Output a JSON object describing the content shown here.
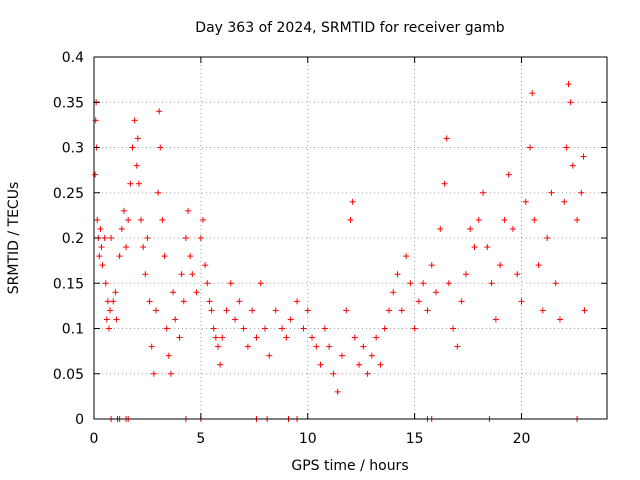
{
  "chart_data": {
    "type": "scatter",
    "title": "Day 363 of 2024, SRMTID for receiver gamb",
    "xlabel": "GPS time / hours",
    "ylabel": "SRMTID / TECUs",
    "xlim": [
      0,
      24
    ],
    "ylim": [
      0,
      0.4
    ],
    "x_ticks": [
      0,
      5,
      10,
      15,
      20
    ],
    "x_tick_labels": [
      "0",
      "5",
      "10",
      "15",
      "20"
    ],
    "y_ticks": [
      0,
      0.05,
      0.1,
      0.15,
      0.2,
      0.25,
      0.3,
      0.35,
      0.4
    ],
    "y_tick_labels": [
      "0",
      "0.05",
      "0.1",
      "0.15",
      "0.2",
      "0.25",
      "0.3",
      "0.35",
      "0.4"
    ],
    "grid": true,
    "marker": "+",
    "color": "#ff0000",
    "series": [
      {
        "name": "SRMTID",
        "points": [
          [
            0.05,
            0.27
          ],
          [
            0.08,
            0.33
          ],
          [
            0.1,
            0.35
          ],
          [
            0.12,
            0.3
          ],
          [
            0.15,
            0.22
          ],
          [
            0.2,
            0.2
          ],
          [
            0.25,
            0.18
          ],
          [
            0.3,
            0.21
          ],
          [
            0.35,
            0.19
          ],
          [
            0.4,
            0.17
          ],
          [
            0.5,
            0.2
          ],
          [
            0.55,
            0.15
          ],
          [
            0.6,
            0.11
          ],
          [
            0.65,
            0.13
          ],
          [
            0.7,
            0.1
          ],
          [
            0.75,
            0.12
          ],
          [
            0.8,
            0.2
          ],
          [
            0.9,
            0.13
          ],
          [
            1.0,
            0.14
          ],
          [
            1.05,
            0.11
          ],
          [
            1.2,
            0.18
          ],
          [
            1.3,
            0.21
          ],
          [
            1.4,
            0.23
          ],
          [
            1.5,
            0.19
          ],
          [
            1.6,
            0.22
          ],
          [
            1.7,
            0.26
          ],
          [
            1.8,
            0.3
          ],
          [
            1.9,
            0.33
          ],
          [
            2.0,
            0.28
          ],
          [
            2.05,
            0.31
          ],
          [
            2.1,
            0.26
          ],
          [
            2.2,
            0.22
          ],
          [
            2.3,
            0.19
          ],
          [
            2.4,
            0.16
          ],
          [
            2.5,
            0.2
          ],
          [
            2.6,
            0.13
          ],
          [
            2.7,
            0.08
          ],
          [
            2.8,
            0.05
          ],
          [
            2.9,
            0.12
          ],
          [
            3.0,
            0.25
          ],
          [
            3.05,
            0.34
          ],
          [
            3.1,
            0.3
          ],
          [
            3.2,
            0.22
          ],
          [
            3.3,
            0.18
          ],
          [
            3.4,
            0.1
          ],
          [
            3.5,
            0.07
          ],
          [
            3.6,
            0.05
          ],
          [
            3.7,
            0.14
          ],
          [
            3.8,
            0.11
          ],
          [
            4.0,
            0.09
          ],
          [
            4.1,
            0.16
          ],
          [
            4.2,
            0.13
          ],
          [
            4.3,
            0.2
          ],
          [
            4.4,
            0.23
          ],
          [
            4.5,
            0.18
          ],
          [
            4.6,
            0.16
          ],
          [
            4.8,
            0.14
          ],
          [
            5.0,
            0.2
          ],
          [
            5.1,
            0.22
          ],
          [
            5.2,
            0.17
          ],
          [
            5.3,
            0.15
          ],
          [
            5.4,
            0.13
          ],
          [
            5.5,
            0.12
          ],
          [
            5.6,
            0.1
          ],
          [
            5.7,
            0.09
          ],
          [
            5.8,
            0.08
          ],
          [
            5.9,
            0.06
          ],
          [
            6.0,
            0.09
          ],
          [
            6.2,
            0.12
          ],
          [
            6.4,
            0.15
          ],
          [
            6.6,
            0.11
          ],
          [
            6.8,
            0.13
          ],
          [
            7.0,
            0.1
          ],
          [
            7.2,
            0.08
          ],
          [
            7.4,
            0.12
          ],
          [
            7.6,
            0.09
          ],
          [
            7.8,
            0.15
          ],
          [
            8.0,
            0.1
          ],
          [
            8.2,
            0.07
          ],
          [
            8.5,
            0.12
          ],
          [
            8.8,
            0.1
          ],
          [
            9.0,
            0.09
          ],
          [
            9.2,
            0.11
          ],
          [
            9.5,
            0.13
          ],
          [
            9.8,
            0.1
          ],
          [
            10.0,
            0.12
          ],
          [
            10.2,
            0.09
          ],
          [
            10.4,
            0.08
          ],
          [
            10.6,
            0.06
          ],
          [
            10.8,
            0.1
          ],
          [
            11.0,
            0.08
          ],
          [
            11.2,
            0.05
          ],
          [
            11.4,
            0.03
          ],
          [
            11.6,
            0.07
          ],
          [
            11.8,
            0.12
          ],
          [
            12.0,
            0.22
          ],
          [
            12.1,
            0.24
          ],
          [
            12.2,
            0.09
          ],
          [
            12.4,
            0.06
          ],
          [
            12.6,
            0.08
          ],
          [
            12.8,
            0.05
          ],
          [
            13.0,
            0.07
          ],
          [
            13.2,
            0.09
          ],
          [
            13.4,
            0.06
          ],
          [
            13.6,
            0.1
          ],
          [
            13.8,
            0.12
          ],
          [
            14.0,
            0.14
          ],
          [
            14.2,
            0.16
          ],
          [
            14.4,
            0.12
          ],
          [
            14.6,
            0.18
          ],
          [
            14.8,
            0.15
          ],
          [
            15.0,
            0.1
          ],
          [
            15.2,
            0.13
          ],
          [
            15.4,
            0.15
          ],
          [
            15.6,
            0.12
          ],
          [
            15.8,
            0.17
          ],
          [
            16.0,
            0.14
          ],
          [
            16.2,
            0.21
          ],
          [
            16.4,
            0.26
          ],
          [
            16.5,
            0.31
          ],
          [
            16.6,
            0.15
          ],
          [
            16.8,
            0.1
          ],
          [
            17.0,
            0.08
          ],
          [
            17.2,
            0.13
          ],
          [
            17.4,
            0.16
          ],
          [
            17.6,
            0.21
          ],
          [
            17.8,
            0.19
          ],
          [
            18.0,
            0.22
          ],
          [
            18.2,
            0.25
          ],
          [
            18.4,
            0.19
          ],
          [
            18.6,
            0.15
          ],
          [
            18.8,
            0.11
          ],
          [
            19.0,
            0.17
          ],
          [
            19.2,
            0.22
          ],
          [
            19.4,
            0.27
          ],
          [
            19.6,
            0.21
          ],
          [
            19.8,
            0.16
          ],
          [
            20.0,
            0.13
          ],
          [
            20.2,
            0.24
          ],
          [
            20.4,
            0.3
          ],
          [
            20.5,
            0.36
          ],
          [
            20.6,
            0.22
          ],
          [
            20.8,
            0.17
          ],
          [
            21.0,
            0.12
          ],
          [
            21.2,
            0.2
          ],
          [
            21.4,
            0.25
          ],
          [
            21.6,
            0.15
          ],
          [
            21.8,
            0.11
          ],
          [
            22.0,
            0.24
          ],
          [
            22.1,
            0.3
          ],
          [
            22.2,
            0.37
          ],
          [
            22.3,
            0.35
          ],
          [
            22.4,
            0.28
          ],
          [
            22.6,
            0.22
          ],
          [
            22.8,
            0.25
          ],
          [
            22.9,
            0.29
          ],
          [
            22.95,
            0.12
          ]
        ]
      }
    ],
    "zero_markers_x": [
      0.8,
      1.1,
      1.2,
      1.5,
      1.6,
      4.3,
      5.0,
      7.6,
      8.1,
      9.1,
      9.5,
      15.6,
      15.8,
      18.5,
      22.6
    ]
  }
}
